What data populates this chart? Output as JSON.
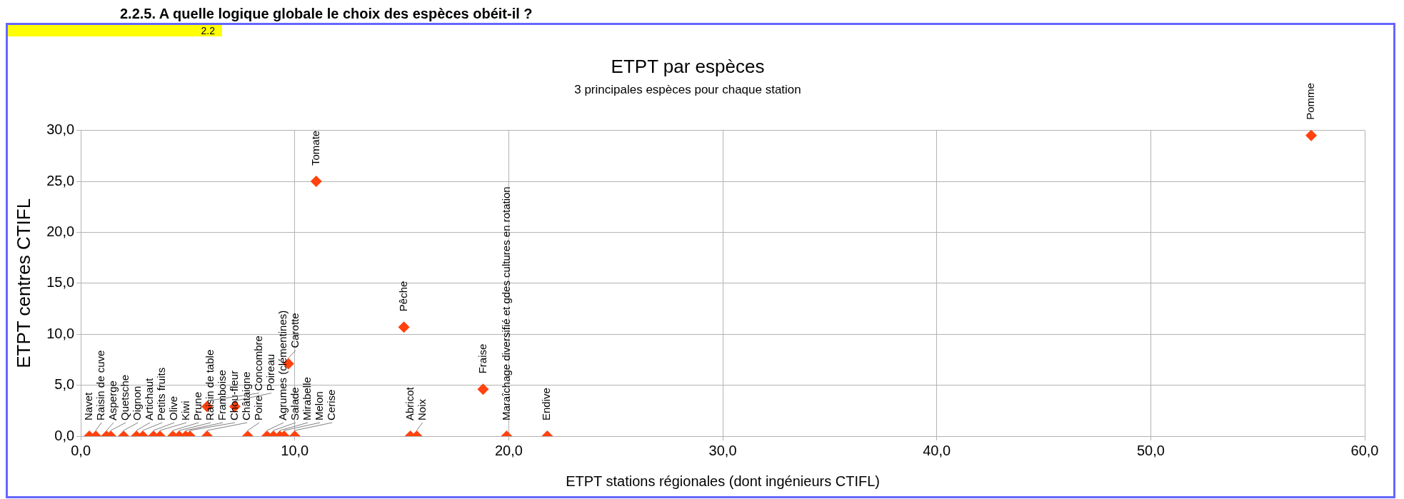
{
  "chart_data": {
    "type": "scatter",
    "title": "ETPT par espèces",
    "subtitle": "3 principales espèces pour chaque station",
    "xlabel": "ETPT stations régionales (dont ingénieurs CTIFL)",
    "ylabel": "ETPT centres CTIFL",
    "annotations": [
      "2.2.5.   A quelle logique globale le choix des espèces obéit-il ?",
      "2.2"
    ],
    "xlim": [
      0,
      60
    ],
    "xticks": [
      {
        "value": 0,
        "label": "0,0"
      },
      {
        "value": 10,
        "label": "10,0"
      },
      {
        "value": 20,
        "label": "20,0"
      },
      {
        "value": 30,
        "label": "30,0"
      },
      {
        "value": 40,
        "label": "40,0"
      },
      {
        "value": 50,
        "label": "50,0"
      },
      {
        "value": 60,
        "label": "60,0"
      }
    ],
    "ylim": [
      0,
      30
    ],
    "yticks": [
      {
        "value": 0,
        "label": "0,0"
      },
      {
        "value": 5,
        "label": "5,0"
      },
      {
        "value": 10,
        "label": "10,0"
      },
      {
        "value": 15,
        "label": "15,0"
      },
      {
        "value": 20,
        "label": "20,0"
      },
      {
        "value": 25,
        "label": "25,0"
      },
      {
        "value": 30,
        "label": "30,0"
      }
    ],
    "grid": true,
    "legend": false,
    "marker": "diamond",
    "series": [
      {
        "name": "Navet",
        "color": "#ff420e",
        "x": [
          0.4
        ],
        "values": [
          0
        ]
      },
      {
        "name": "Raisin de cuve",
        "color": "#ff420e",
        "x": [
          0.7
        ],
        "values": [
          0
        ]
      },
      {
        "name": "Asperge",
        "color": "#ff420e",
        "x": [
          1.2
        ],
        "values": [
          0
        ]
      },
      {
        "name": "Quetsche",
        "color": "#ff420e",
        "x": [
          1.4
        ],
        "values": [
          0
        ]
      },
      {
        "name": "Oignon",
        "color": "#ff420e",
        "x": [
          2.0
        ],
        "values": [
          0
        ]
      },
      {
        "name": "Artichaut",
        "color": "#ff420e",
        "x": [
          2.6
        ],
        "values": [
          0
        ]
      },
      {
        "name": "Petits fruits",
        "color": "#ff420e",
        "x": [
          2.9
        ],
        "values": [
          0
        ]
      },
      {
        "name": "Olive",
        "color": "#ff420e",
        "x": [
          3.4
        ],
        "values": [
          0
        ]
      },
      {
        "name": "Kiwi",
        "color": "#ff420e",
        "x": [
          3.7
        ],
        "values": [
          0
        ]
      },
      {
        "name": "Prune",
        "color": "#ff420e",
        "x": [
          4.3
        ],
        "values": [
          0
        ]
      },
      {
        "name": "Raisin de table",
        "color": "#ff420e",
        "x": [
          4.6
        ],
        "values": [
          0
        ]
      },
      {
        "name": "Framboise",
        "color": "#ff420e",
        "x": [
          4.9
        ],
        "values": [
          0
        ]
      },
      {
        "name": "Chou-fleur",
        "color": "#ff420e",
        "x": [
          5.1
        ],
        "values": [
          0
        ]
      },
      {
        "name": "Châtaigne",
        "color": "#ff420e",
        "x": [
          5.9
        ],
        "values": [
          0
        ]
      },
      {
        "name": "Concombre",
        "color": "#ff420e",
        "x": [
          5.9
        ],
        "values": [
          2.9
        ]
      },
      {
        "name": "Poireau",
        "color": "#ff420e",
        "x": [
          7.2
        ],
        "values": [
          2.9
        ]
      },
      {
        "name": "Poire",
        "color": "#ff420e",
        "x": [
          7.8
        ],
        "values": [
          0
        ]
      },
      {
        "name": "Agrumes (clémentines)",
        "color": "#ff420e",
        "x": [
          8.7
        ],
        "values": [
          0
        ]
      },
      {
        "name": "Salade",
        "color": "#ff420e",
        "x": [
          9.0
        ],
        "values": [
          0
        ]
      },
      {
        "name": "Mirabelle",
        "color": "#ff420e",
        "x": [
          9.3
        ],
        "values": [
          0
        ]
      },
      {
        "name": "Melon",
        "color": "#ff420e",
        "x": [
          9.5
        ],
        "values": [
          0
        ]
      },
      {
        "name": "Carotte",
        "color": "#ff420e",
        "x": [
          9.7
        ],
        "values": [
          7.1
        ]
      },
      {
        "name": "Cerise",
        "color": "#ff420e",
        "x": [
          10.0
        ],
        "values": [
          0
        ]
      },
      {
        "name": "Tomate",
        "color": "#ff420e",
        "x": [
          11.0
        ],
        "values": [
          25
        ]
      },
      {
        "name": "Pêche",
        "color": "#ff420e",
        "x": [
          15.1
        ],
        "values": [
          10.7
        ]
      },
      {
        "name": "Abricot",
        "color": "#ff420e",
        "x": [
          15.4
        ],
        "values": [
          0
        ]
      },
      {
        "name": "Noix",
        "color": "#ff420e",
        "x": [
          15.7
        ],
        "values": [
          0
        ]
      },
      {
        "name": "Fraise",
        "color": "#ff420e",
        "x": [
          18.8
        ],
        "values": [
          4.6
        ]
      },
      {
        "name": "Maraîchage diversifié et gdes cultures en rotation",
        "color": "#ff420e",
        "x": [
          19.9
        ],
        "values": [
          0
        ]
      },
      {
        "name": "Endive",
        "color": "#ff420e",
        "x": [
          21.8
        ],
        "values": [
          0
        ]
      },
      {
        "name": "Pomme",
        "color": "#ff420e",
        "x": [
          57.5
        ],
        "values": [
          29.5
        ]
      }
    ]
  }
}
